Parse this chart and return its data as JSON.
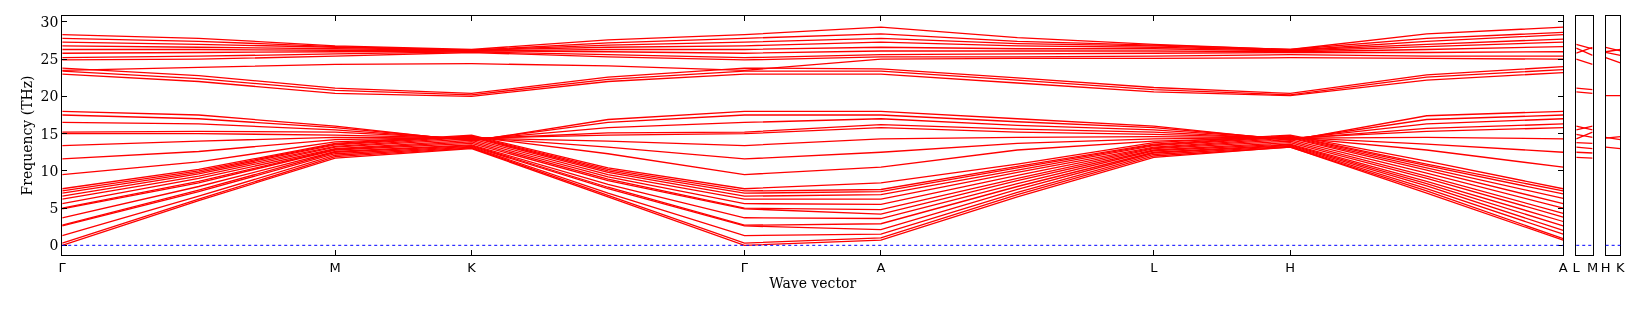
{
  "chart_data": [
    {
      "type": "line",
      "xlabel": "Wave vector",
      "ylabel": "Frequency (THz)",
      "categories": [
        "Γ",
        null,
        "M",
        "K",
        null,
        "Γ",
        "A",
        null,
        "L",
        "H",
        null,
        "A"
      ],
      "ylim": [
        -1.3,
        30.8
      ],
      "yticks": [
        0,
        5,
        10,
        15,
        20,
        25,
        30
      ],
      "marker": "none",
      "line_style": "solid",
      "ref_lines": [
        {
          "axis": "y",
          "value": 0,
          "color": "#0000ff",
          "line_style": "dotted"
        }
      ],
      "series": [
        {
          "color": "#ff0000",
          "values": [
            0,
            6,
            11.7,
            13.0,
            6.5,
            0,
            0.7,
            6.5,
            11.8,
            13.2,
            7,
            0.7
          ]
        },
        {
          "color": "#ff0000",
          "values": [
            0.3,
            6.2,
            11.9,
            13.1,
            6.7,
            0.3,
            1.0,
            6.8,
            12.0,
            13.2,
            7.3,
            0.9
          ]
        },
        {
          "color": "#ff0000",
          "values": [
            1.3,
            6.6,
            12.1,
            13.2,
            7.0,
            1.3,
            1.5,
            7.1,
            12.2,
            13.3,
            7.6,
            1.5
          ]
        },
        {
          "color": "#ff0000",
          "values": [
            2.6,
            7.2,
            12.3,
            13.3,
            7.6,
            2.6,
            2.1,
            7.5,
            12.4,
            13.4,
            8.0,
            2.0
          ]
        },
        {
          "color": "#ff0000",
          "values": [
            2.7,
            7.4,
            12.5,
            13.4,
            7.8,
            2.7,
            2.9,
            7.9,
            12.5,
            13.5,
            8.3,
            2.6
          ]
        },
        {
          "color": "#ff0000",
          "values": [
            3.7,
            7.9,
            12.6,
            13.5,
            8.2,
            3.7,
            3.6,
            8.3,
            12.7,
            13.6,
            8.6,
            3.2
          ]
        },
        {
          "color": "#ff0000",
          "values": [
            4.9,
            8.4,
            12.8,
            13.7,
            8.7,
            4.9,
            4.2,
            8.7,
            12.8,
            13.8,
            9.0,
            3.8
          ]
        },
        {
          "color": "#ff0000",
          "values": [
            5.0,
            8.6,
            12.9,
            13.9,
            8.9,
            5.0,
            4.8,
            9.0,
            13.0,
            14.0,
            9.3,
            4.3
          ]
        },
        {
          "color": "#ff0000",
          "values": [
            5.6,
            9.0,
            13.0,
            14.1,
            9.2,
            5.6,
            5.5,
            9.4,
            13.1,
            14.2,
            9.7,
            5.0
          ]
        },
        {
          "color": "#ff0000",
          "values": [
            6.2,
            9.3,
            13.2,
            14.3,
            9.5,
            6.2,
            6.2,
            9.8,
            13.2,
            14.4,
            10.1,
            5.6
          ]
        },
        {
          "color": "#ff0000",
          "values": [
            6.6,
            9.6,
            13.3,
            14.5,
            9.8,
            6.6,
            6.8,
            10.1,
            13.4,
            14.5,
            10.4,
            6.3
          ]
        },
        {
          "color": "#ff0000",
          "values": [
            7.0,
            9.8,
            13.5,
            14.6,
            10.0,
            7.0,
            7.2,
            10.4,
            13.5,
            14.6,
            10.7,
            6.9
          ]
        },
        {
          "color": "#ff0000",
          "values": [
            7.3,
            10.0,
            13.6,
            14.7,
            10.2,
            7.3,
            7.5,
            10.6,
            13.6,
            14.7,
            10.9,
            7.3
          ]
        },
        {
          "color": "#ff0000",
          "values": [
            7.6,
            10.2,
            13.7,
            14.8,
            10.4,
            7.6,
            8.4,
            10.9,
            13.8,
            14.8,
            11.3,
            7.6
          ]
        },
        {
          "color": "#ff0000",
          "values": [
            9.5,
            11.2,
            13.9,
            14.6,
            12.3,
            9.5,
            10.5,
            12.8,
            14.0,
            14.5,
            12.8,
            10.5
          ]
        },
        {
          "color": "#ff0000",
          "values": [
            11.6,
            12.6,
            14.2,
            14.5,
            13.2,
            11.6,
            12.5,
            13.7,
            14.3,
            14.5,
            13.6,
            12.5
          ]
        },
        {
          "color": "#ff0000",
          "values": [
            13.4,
            14.0,
            14.5,
            14.4,
            14.0,
            13.4,
            14.3,
            14.5,
            14.6,
            14.4,
            14.5,
            14.3
          ]
        },
        {
          "color": "#ff0000",
          "values": [
            15.0,
            15.0,
            14.8,
            14.4,
            14.8,
            15.0,
            15.8,
            15.2,
            14.9,
            14.4,
            15.3,
            15.8
          ]
        },
        {
          "color": "#ff0000",
          "values": [
            15.2,
            15.3,
            15.2,
            14.3,
            15.1,
            15.2,
            16.2,
            15.6,
            15.2,
            14.3,
            15.7,
            16.3
          ]
        },
        {
          "color": "#ff0000",
          "values": [
            16.5,
            16.3,
            15.5,
            14.2,
            15.8,
            16.5,
            17.0,
            16.1,
            15.5,
            14.3,
            16.3,
            17.0
          ]
        },
        {
          "color": "#ff0000",
          "values": [
            17.5,
            17.0,
            15.8,
            14.1,
            16.5,
            17.5,
            17.5,
            16.6,
            15.8,
            14.2,
            16.9,
            17.5
          ]
        },
        {
          "color": "#ff0000",
          "values": [
            18.0,
            17.5,
            16.0,
            14.0,
            16.9,
            18.0,
            18.0,
            17.0,
            16.0,
            14.1,
            17.4,
            18.0
          ]
        },
        {
          "color": "#ff0000",
          "values": [
            23.0,
            22.0,
            20.4,
            20.0,
            22.0,
            23.0,
            23.0,
            21.8,
            20.6,
            20.1,
            22.2,
            23.2
          ]
        },
        {
          "color": "#ff0000",
          "values": [
            23.4,
            22.4,
            20.8,
            20.2,
            22.3,
            23.4,
            23.4,
            22.2,
            20.9,
            20.2,
            22.6,
            23.6
          ]
        },
        {
          "color": "#ff0000",
          "values": [
            23.8,
            22.8,
            21.1,
            20.4,
            22.6,
            23.8,
            23.7,
            22.5,
            21.2,
            20.4,
            22.9,
            24.0
          ]
        },
        {
          "color": "#ff0000",
          "values": [
            23.5,
            23.9,
            24.3,
            24.4,
            24.1,
            23.5,
            25.0,
            25.1,
            25.1,
            25.2,
            25.1,
            25.0
          ]
        },
        {
          "color": "#ff0000",
          "values": [
            24.9,
            25.0,
            25.4,
            25.9,
            25.3,
            24.9,
            25.3,
            25.3,
            25.4,
            25.6,
            25.4,
            25.4
          ]
        },
        {
          "color": "#ff0000",
          "values": [
            25.2,
            25.4,
            25.7,
            26.0,
            25.6,
            25.2,
            25.6,
            25.7,
            25.8,
            25.9,
            25.9,
            26.0
          ]
        },
        {
          "color": "#ff0000",
          "values": [
            25.8,
            25.9,
            26.0,
            26.1,
            26.0,
            25.8,
            26.1,
            26.1,
            26.1,
            26.0,
            26.3,
            26.7
          ]
        },
        {
          "color": "#ff0000",
          "values": [
            26.3,
            26.3,
            26.2,
            26.1,
            26.3,
            26.3,
            26.6,
            26.4,
            26.4,
            26.1,
            26.7,
            27.3
          ]
        },
        {
          "color": "#ff0000",
          "values": [
            26.8,
            26.6,
            26.4,
            26.2,
            26.6,
            26.8,
            27.3,
            26.8,
            26.6,
            26.2,
            27.0,
            27.7
          ]
        },
        {
          "color": "#ff0000",
          "values": [
            27.3,
            27.0,
            26.6,
            26.2,
            26.9,
            27.3,
            27.8,
            27.1,
            26.8,
            26.2,
            27.4,
            28.3
          ]
        },
        {
          "color": "#ff0000",
          "values": [
            27.8,
            27.4,
            26.7,
            26.2,
            27.2,
            27.8,
            28.4,
            27.4,
            26.9,
            26.3,
            27.8,
            28.6
          ]
        },
        {
          "color": "#ff0000",
          "values": [
            28.3,
            27.8,
            26.8,
            26.3,
            27.6,
            28.3,
            29.3,
            27.9,
            27.0,
            26.3,
            28.4,
            29.3
          ]
        }
      ]
    },
    {
      "type": "line",
      "categories": [
        "L",
        "M"
      ],
      "ylim": [
        -1.3,
        30.8
      ],
      "yticks": [
        0,
        5,
        10,
        15,
        20,
        25,
        30
      ],
      "tick_labels": "x",
      "marker": "none",
      "line_style": "solid",
      "ref_lines": [
        {
          "axis": "y",
          "value": 0,
          "color": "#0000ff",
          "line_style": "dotted"
        }
      ],
      "series": [
        {
          "color": "#ff0000",
          "values": [
            11.8,
            11.7
          ]
        },
        {
          "color": "#ff0000",
          "values": [
            12.5,
            12.4
          ]
        },
        {
          "color": "#ff0000",
          "values": [
            13.2,
            13.0
          ]
        },
        {
          "color": "#ff0000",
          "values": [
            13.8,
            13.7
          ]
        },
        {
          "color": "#ff0000",
          "values": [
            14.3,
            15.2
          ]
        },
        {
          "color": "#ff0000",
          "values": [
            14.9,
            14.5
          ]
        },
        {
          "color": "#ff0000",
          "values": [
            15.5,
            16.0
          ]
        },
        {
          "color": "#ff0000",
          "values": [
            16.0,
            15.5
          ]
        },
        {
          "color": "#ff0000",
          "values": [
            20.6,
            20.4
          ]
        },
        {
          "color": "#ff0000",
          "values": [
            21.1,
            20.9
          ]
        },
        {
          "color": "#ff0000",
          "values": [
            25.0,
            24.3
          ]
        },
        {
          "color": "#ff0000",
          "values": [
            25.8,
            26.6
          ]
        },
        {
          "color": "#ff0000",
          "values": [
            27.0,
            26.4
          ]
        },
        {
          "color": "#ff0000",
          "values": [
            26.5,
            25.5
          ]
        }
      ]
    },
    {
      "type": "line",
      "categories": [
        "H",
        "K"
      ],
      "ylim": [
        -1.3,
        30.8
      ],
      "yticks": [
        0,
        5,
        10,
        15,
        20,
        25,
        30
      ],
      "tick_labels": "x",
      "marker": "none",
      "line_style": "solid",
      "ref_lines": [
        {
          "axis": "y",
          "value": 0,
          "color": "#0000ff",
          "line_style": "dotted"
        }
      ],
      "series": [
        {
          "color": "#ff0000",
          "values": [
            13.2,
            13.0
          ]
        },
        {
          "color": "#ff0000",
          "values": [
            14.4,
            14.6
          ]
        },
        {
          "color": "#ff0000",
          "values": [
            14.5,
            14.2
          ]
        },
        {
          "color": "#ff0000",
          "values": [
            20.1,
            20.1
          ]
        },
        {
          "color": "#ff0000",
          "values": [
            26.6,
            26.1
          ]
        },
        {
          "color": "#ff0000",
          "values": [
            25.2,
            24.5
          ]
        },
        {
          "color": "#ff0000",
          "values": [
            26.0,
            26.3
          ]
        },
        {
          "color": "#ff0000",
          "values": [
            25.9,
            25.5
          ]
        }
      ]
    }
  ]
}
